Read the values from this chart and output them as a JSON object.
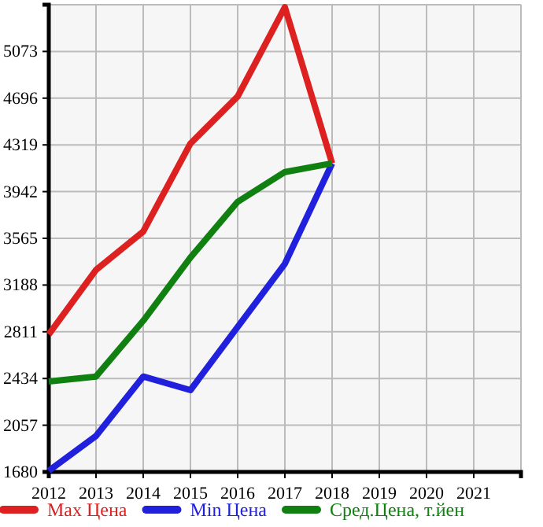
{
  "chart_data": {
    "type": "line",
    "x": [
      2012,
      2013,
      2014,
      2015,
      2016,
      2017,
      2018
    ],
    "series": [
      {
        "name": "Max Цена",
        "color": "#dd2020",
        "values": [
          2790,
          3310,
          3620,
          4330,
          4710,
          5430,
          4170
        ]
      },
      {
        "name": "Min Цена",
        "color": "#2020dd",
        "values": [
          1690,
          1970,
          2450,
          2340,
          2850,
          3360,
          4170
        ]
      },
      {
        "name": "Сред.Цена, т.йен",
        "color": "#108010",
        "values": [
          2410,
          2450,
          2900,
          3410,
          3860,
          4100,
          4170
        ]
      }
    ],
    "xlim": [
      2012,
      2022
    ],
    "xticks": [
      2012,
      2013,
      2014,
      2015,
      2016,
      2017,
      2018,
      2019,
      2020,
      2021,
      {
        "value": 2022,
        "label": null
      }
    ],
    "ylim": [
      1680,
      5450
    ],
    "yticks": [
      1680,
      2057,
      2434,
      2811,
      3188,
      3565,
      3942,
      4319,
      4696,
      5073,
      {
        "value": 5450,
        "label": null
      }
    ],
    "grid": true,
    "legend": "bottom",
    "marker": "none",
    "line_style": "solid"
  }
}
